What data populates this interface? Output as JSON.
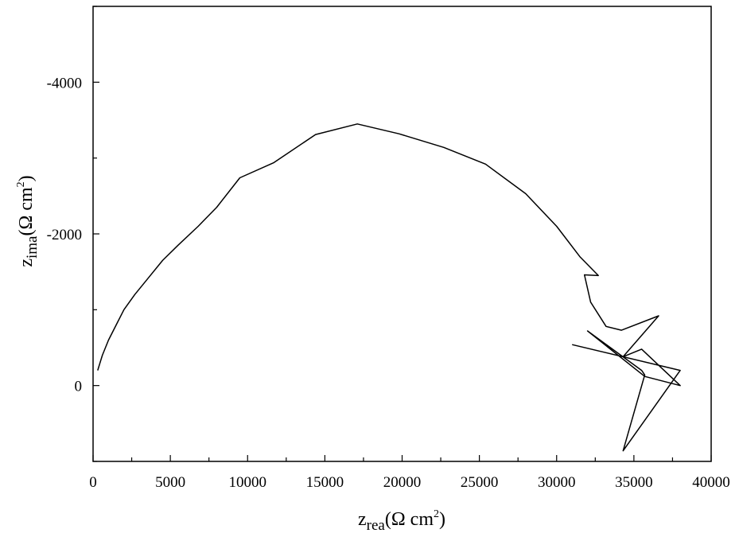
{
  "chart_data": {
    "type": "line",
    "title": "",
    "xlabel": {
      "base": "z",
      "sub": "rea",
      "unit": "(Ω cm",
      "sup": "2",
      "close": ")"
    },
    "ylabel": {
      "base": "z",
      "sub": "ima",
      "unit": "(Ω cm",
      "sup": "2",
      "close": ")"
    },
    "xlim": [
      0,
      40000
    ],
    "ylim": [
      1000,
      -5000
    ],
    "y_axis_inverted": true,
    "grid": false,
    "legend": "none",
    "x_ticks": [
      0,
      5000,
      10000,
      15000,
      20000,
      25000,
      30000,
      35000,
      40000
    ],
    "x_tick_labels": [
      "0",
      "5000",
      "10000",
      "15000",
      "20000",
      "25000",
      "30000",
      "35000",
      "40000"
    ],
    "y_ticks": [
      0,
      -2000,
      -4000
    ],
    "y_tick_labels": [
      "0",
      "-2000",
      "-4000"
    ],
    "series": [
      {
        "color": "#000000",
        "x": [
          300,
          600,
          1000,
          1500,
          2000,
          2700,
          3500,
          4500,
          5500,
          6800,
          8000,
          9500,
          11700,
          14400,
          17100,
          19800,
          22700,
          25400,
          28000,
          30000,
          31500,
          32700,
          31800,
          32200,
          33200,
          34200,
          36600,
          34300,
          35500,
          38000,
          35700,
          32000,
          35500,
          35700,
          34300,
          38000,
          31000
        ],
        "y": [
          -200,
          -400,
          -600,
          -800,
          -1000,
          -1200,
          -1400,
          -1650,
          -1850,
          -2100,
          -2350,
          -2740,
          -2940,
          -3310,
          -3450,
          -3320,
          -3140,
          -2920,
          -2530,
          -2100,
          -1700,
          -1450,
          -1460,
          -1100,
          -780,
          -730,
          -920,
          -380,
          -480,
          0,
          -120,
          -720,
          -200,
          -140,
          860,
          -200,
          -540
        ]
      }
    ]
  }
}
